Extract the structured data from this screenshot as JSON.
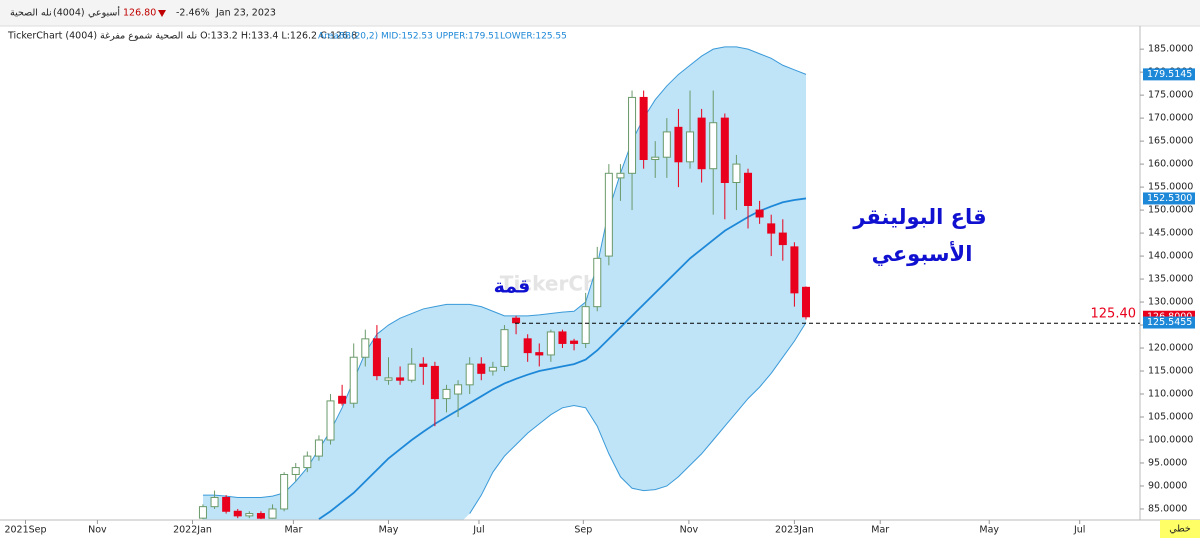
{
  "header": {
    "name": "نله الصحية",
    "code": "(4004)",
    "period": "أسبوعي",
    "price": "126.80",
    "change": "-2.46%",
    "date": "Jan 23, 2023"
  },
  "chart_data": {
    "type": "candlestick",
    "title": "TickerChart نله الصحية شموع مفرغة (4004) O:133.2 H:133.4 L:126.2 C:126.8",
    "indicator": {
      "name": "AreaBB(20,2)",
      "mid": "MID:152.53",
      "upper": "UPPER:179.51",
      "lower": "LOWER:125.55"
    },
    "up_color": "#6a9a6a",
    "down_color": "#e8001c",
    "band_color": "#bfe3f7",
    "band_line_color": "#3a9ad9",
    "mid_color": "#1e88d8",
    "xlim": [
      -17.5,
      80.8
    ],
    "ylim": [
      82.6,
      189.6
    ],
    "xticks": [
      {
        "value": -15.3,
        "label": "2021Sep"
      },
      {
        "value": -9.1,
        "label": "Nov"
      },
      {
        "value": -0.9,
        "label": "2022Jan"
      },
      {
        "value": 7.8,
        "label": "Mar"
      },
      {
        "value": 16.0,
        "label": "May"
      },
      {
        "value": 23.8,
        "label": "Jul"
      },
      {
        "value": 32.8,
        "label": "Sep"
      },
      {
        "value": 41.9,
        "label": "Nov"
      },
      {
        "value": 51.0,
        "label": "2023Jan"
      },
      {
        "value": 58.4,
        "label": "Mar"
      },
      {
        "value": 67.8,
        "label": "May"
      },
      {
        "value": 75.6,
        "label": "Jul"
      }
    ],
    "yticks": [
      {
        "value": 185,
        "label": "185.0000"
      },
      {
        "value": 180,
        "label": "180.0000"
      },
      {
        "value": 175,
        "label": "175.0000"
      },
      {
        "value": 170,
        "label": "170.0000"
      },
      {
        "value": 165,
        "label": "165.0000"
      },
      {
        "value": 160,
        "label": "160.0000"
      },
      {
        "value": 155,
        "label": "155.0000"
      },
      {
        "value": 150,
        "label": "150.0000"
      },
      {
        "value": 145,
        "label": "145.0000"
      },
      {
        "value": 140,
        "label": "140.0000"
      },
      {
        "value": 135,
        "label": "135.0000"
      },
      {
        "value": 130,
        "label": "130.0000"
      },
      {
        "value": 125,
        "label": "125.0000"
      },
      {
        "value": 120,
        "label": "120.0000"
      },
      {
        "value": 115,
        "label": "115.0000"
      },
      {
        "value": 110,
        "label": "110.0000"
      },
      {
        "value": 105,
        "label": "105.0000"
      },
      {
        "value": 100,
        "label": "100.0000"
      },
      {
        "value": 95,
        "label": "95.0000"
      },
      {
        "value": 90,
        "label": "90.0000"
      },
      {
        "value": 85,
        "label": "85.0000"
      }
    ],
    "ohlc": [
      [
        83,
        86,
        82.8,
        85.5
      ],
      [
        85.5,
        89,
        85,
        87.5
      ],
      [
        87.5,
        88,
        84,
        84.5
      ],
      [
        84.5,
        85,
        83,
        83.5
      ],
      [
        83.5,
        84.5,
        83,
        84
      ],
      [
        84,
        84.5,
        82.8,
        83
      ],
      [
        83,
        86,
        82.9,
        85
      ],
      [
        85,
        93,
        84.5,
        92.5
      ],
      [
        92.5,
        95,
        91,
        94
      ],
      [
        94,
        97.5,
        93,
        96.5
      ],
      [
        96.5,
        101,
        95.5,
        100
      ],
      [
        100,
        110,
        99,
        108.5
      ],
      [
        109.5,
        112,
        107.5,
        108
      ],
      [
        108,
        121,
        107,
        118
      ],
      [
        118,
        124,
        116,
        122
      ],
      [
        122,
        125,
        113,
        114
      ],
      [
        113,
        118,
        112,
        113.5
      ],
      [
        113.5,
        116,
        112,
        113
      ],
      [
        113,
        120,
        112.5,
        116.5
      ],
      [
        116.5,
        118,
        112,
        116
      ],
      [
        116,
        117,
        103,
        109
      ],
      [
        109,
        112,
        106,
        111
      ],
      [
        110,
        113,
        105,
        112
      ],
      [
        112,
        118,
        110,
        116.5
      ],
      [
        116.5,
        118,
        113,
        114.5
      ],
      [
        115,
        117,
        114,
        115.8
      ],
      [
        116,
        125,
        115,
        124
      ],
      [
        126.5,
        127,
        123,
        125.5
      ],
      [
        122,
        123,
        117,
        119
      ],
      [
        119,
        121,
        116,
        118.5
      ],
      [
        118.5,
        124,
        117,
        123.5
      ],
      [
        123.5,
        124,
        120,
        121
      ],
      [
        121.5,
        122,
        119.5,
        121
      ],
      [
        121,
        132,
        120,
        129
      ],
      [
        129,
        142,
        128,
        139.5
      ],
      [
        140,
        160,
        138,
        158
      ],
      [
        157,
        160,
        152,
        158
      ],
      [
        158,
        176,
        150,
        174.5
      ],
      [
        174.5,
        176,
        159,
        161
      ],
      [
        161,
        165,
        157,
        161.5
      ],
      [
        161.5,
        170,
        157,
        167
      ],
      [
        168,
        172,
        155,
        160.5
      ],
      [
        160.5,
        176,
        159,
        167
      ],
      [
        170,
        172,
        156,
        159
      ],
      [
        159,
        176,
        149,
        169
      ],
      [
        170,
        171,
        148,
        156
      ],
      [
        156,
        162,
        150,
        160
      ],
      [
        158,
        159,
        146,
        151
      ],
      [
        150,
        152,
        147,
        148.5
      ],
      [
        147,
        149,
        140,
        145
      ],
      [
        145,
        148,
        139,
        142.5
      ],
      [
        142,
        143,
        129,
        132
      ],
      [
        133.2,
        133.4,
        126.2,
        126.8
      ]
    ],
    "upper": [
      88,
      88,
      87.8,
      87.5,
      87.5,
      87.5,
      87.8,
      88.5,
      91,
      94,
      98,
      102,
      107,
      113,
      119,
      123,
      125,
      126.5,
      127.5,
      128.5,
      129,
      129.5,
      129.5,
      129.5,
      129,
      128,
      127,
      127,
      127,
      127.2,
      127.5,
      127.8,
      128,
      130,
      138,
      150,
      158,
      165,
      170,
      174,
      177,
      179.5,
      181.5,
      183.5,
      185,
      185.5,
      185.5,
      185,
      184,
      183,
      181.5,
      180.5,
      179.51
    ],
    "mid": [
      null,
      null,
      null,
      null,
      null,
      null,
      null,
      null,
      null,
      null,
      82.8,
      84.5,
      86.5,
      88.5,
      91,
      93.5,
      96,
      98,
      100,
      101.8,
      103.5,
      105,
      106.5,
      108,
      109.5,
      111,
      112.3,
      113.3,
      114.2,
      115,
      115.5,
      116,
      116.5,
      117.5,
      119.5,
      122,
      124.5,
      127,
      129.5,
      132,
      134.5,
      137,
      139.5,
      141.5,
      143.5,
      145.5,
      147,
      148.5,
      149.8,
      150.8,
      151.7,
      152.2,
      152.53
    ],
    "lower": [
      null,
      null,
      null,
      null,
      null,
      null,
      null,
      null,
      null,
      null,
      null,
      null,
      null,
      null,
      null,
      null,
      null,
      null,
      null,
      null,
      null,
      null,
      null,
      84,
      88,
      93,
      96.5,
      99,
      101.5,
      103.5,
      105.5,
      107,
      107.5,
      107,
      103,
      97,
      92,
      89.5,
      89,
      89.2,
      90,
      92,
      94.5,
      97,
      100,
      103,
      106,
      109,
      111.5,
      114.5,
      118,
      121.5,
      125.55
    ],
    "price_badges": [
      {
        "value": 179.5145,
        "label": "179.5145",
        "color": "#1e88d8"
      },
      {
        "value": 152.53,
        "label": "152.5300",
        "color": "#1e88d8"
      },
      {
        "value": 126.8,
        "label": "126.8000",
        "color": "#e8001c"
      },
      {
        "value": 125.5455,
        "label": "125.5455",
        "color": "#1e88d8"
      }
    ],
    "support_line": {
      "value": 125.4,
      "label": "125.40"
    },
    "annotations": {
      "bottom_1": "قاع البولينقر",
      "bottom_2": "الأسبوعي",
      "top": "قمة",
      "watermark": "TickerChart"
    },
    "chart_style": "خطي"
  }
}
